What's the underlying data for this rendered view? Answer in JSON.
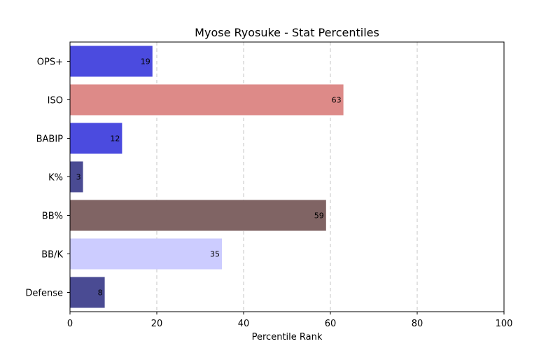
{
  "chart_data": {
    "type": "bar",
    "orientation": "horizontal",
    "title": "Myose Ryosuke - Stat Percentiles",
    "xlabel": "Percentile Rank",
    "ylabel": "",
    "xlim": [
      0,
      100
    ],
    "xticks": [
      0,
      20,
      40,
      60,
      80,
      100
    ],
    "grid": "vertical-dashed",
    "categories": [
      "OPS+",
      "ISO",
      "BABIP",
      "K%",
      "BB%",
      "BB/K",
      "Defense"
    ],
    "values": [
      19,
      63,
      12,
      3,
      59,
      35,
      8
    ],
    "colors": [
      "#4b4bdf",
      "#dd8a88",
      "#4b4bdf",
      "#4a4b93",
      "#806464",
      "#ccccff",
      "#4a4b93"
    ]
  }
}
